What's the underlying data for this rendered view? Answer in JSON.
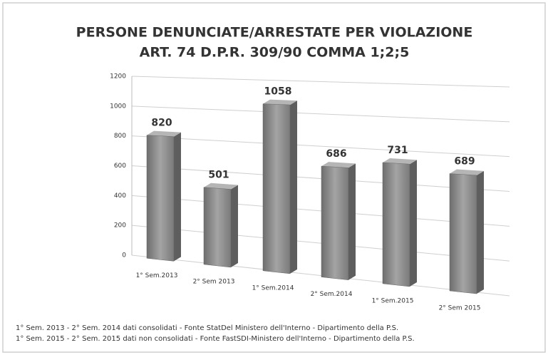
{
  "chart_data": {
    "type": "bar3d",
    "title": [
      "PERSONE DENUNCIATE/ARRESTATE PER VIOLAZIONE",
      "ART. 74 D.P.R. 309/90 COMMA 1;2;5"
    ],
    "categories": [
      "1° Sem.2013",
      "2° Sem 2013",
      "1° Sem.2014",
      "2° Sem.2014",
      "1° Sem.2015",
      "2° Sem 2015"
    ],
    "values": [
      820,
      501,
      1058,
      686,
      731,
      689
    ],
    "color": "#8c8c8c",
    "ylim": [
      0,
      1200
    ],
    "yticks": [
      0,
      200,
      400,
      600,
      800,
      1000,
      1200
    ],
    "grid": true,
    "notes": [
      "1° Sem. 2013 - 2° Sem. 2014 dati consolidati - Fonte StatDel Ministero dell'Interno - Dipartimento della P.S.",
      "1° Sem. 2015 - 2° Sem. 2015 dati non consolidati - Fonte FastSDI-Ministero dell'Interno - Dipartimento della P.S."
    ]
  }
}
